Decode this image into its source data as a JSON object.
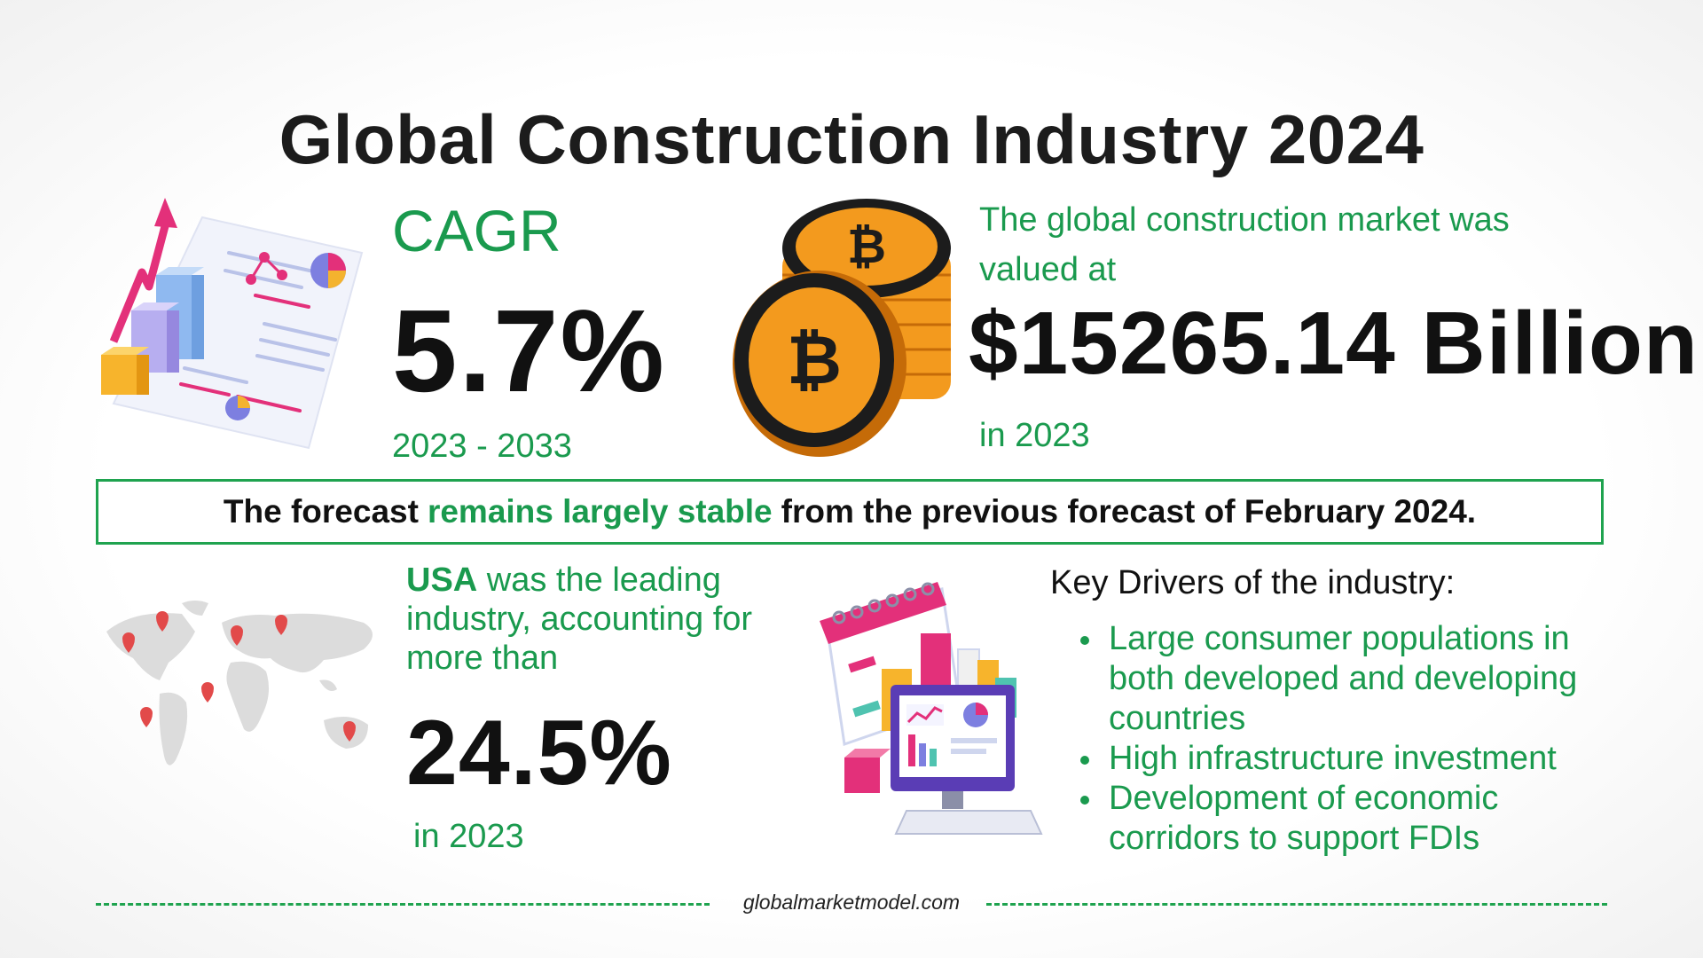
{
  "title": "Global Construction Industry 2024",
  "cagr": {
    "label": "CAGR",
    "value": "5.7%",
    "period": "2023 - 2033"
  },
  "market_value": {
    "description": "The global construction market was valued at",
    "value": "$15265.14 Billion",
    "year": "in 2023"
  },
  "forecast_banner": {
    "prefix": "The forecast",
    "highlight": "remains largely stable",
    "suffix": "from the previous forecast of February 2024."
  },
  "usa": {
    "country": "USA",
    "text": "was the leading industry, accounting for more than",
    "value": "24.5%",
    "year": "in 2023"
  },
  "key_drivers": {
    "title": "Key Drivers of the industry:",
    "items": [
      "Large consumer populations in both developed and developing countries",
      "High infrastructure investment",
      "Development of economic corridors to support FDIs"
    ]
  },
  "footer": {
    "source": "globalmarketmodel.com"
  },
  "colors": {
    "accent_green": "#1a9a4e",
    "text_dark": "#111111",
    "coin_orange": "#f39a1e",
    "chart_pink": "#e3307a"
  },
  "icons": [
    "growth-chart-illustration",
    "bitcoin-coins-illustration",
    "world-map-illustration",
    "calendar-analytics-illustration"
  ]
}
